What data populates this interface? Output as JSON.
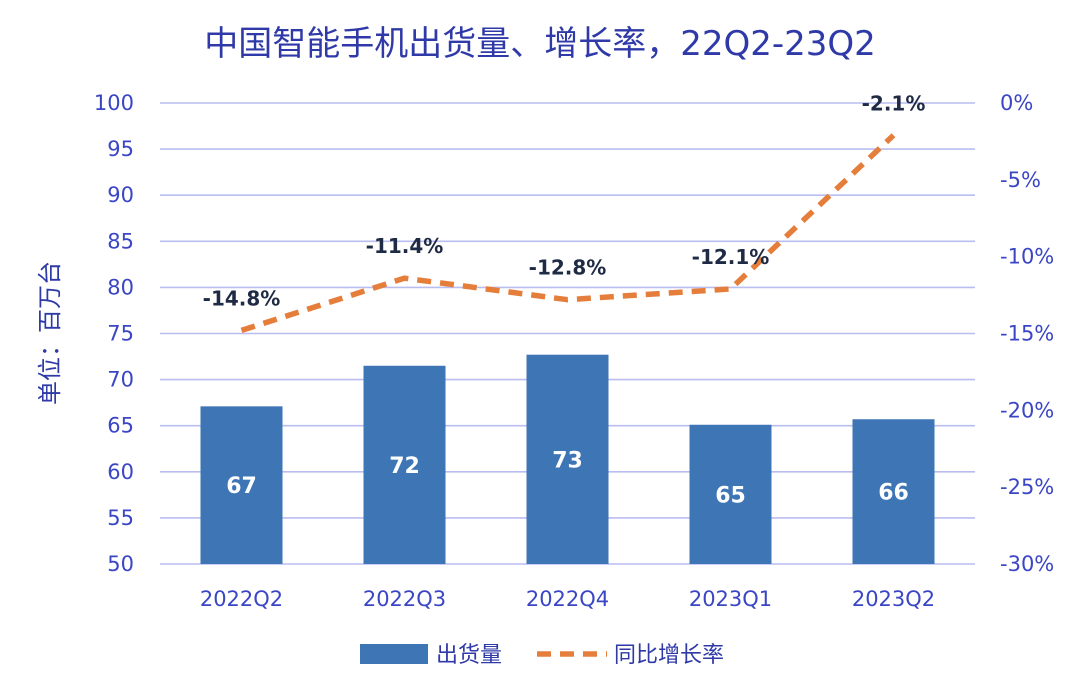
{
  "chart_data": {
    "type": "bar",
    "title": "中国智能手机出货量、增长率，22Q2-23Q2",
    "ylabel": "单位：百万台",
    "categories": [
      "2022Q2",
      "2022Q3",
      "2022Q4",
      "2023Q1",
      "2023Q2"
    ],
    "series": [
      {
        "name": "出货量",
        "type": "bar",
        "axis": "left",
        "color": "#3d75b5",
        "values": [
          67.1,
          71.5,
          72.7,
          65.1,
          65.7
        ],
        "labels": [
          "67",
          "72",
          "73",
          "65",
          "66"
        ]
      },
      {
        "name": "同比增长率",
        "type": "line",
        "style": "dashed",
        "axis": "right",
        "color": "#e57e3b",
        "values": [
          -14.8,
          -11.4,
          -12.8,
          -12.1,
          -2.1
        ],
        "labels": [
          "-14.8%",
          "-11.4%",
          "-12.8%",
          "-12.1%",
          "-2.1%"
        ]
      }
    ],
    "ylim": [
      50,
      100
    ],
    "yticks": [
      "100",
      "95",
      "90",
      "85",
      "80",
      "75",
      "70",
      "65",
      "60",
      "55",
      "50"
    ],
    "y2lim": [
      -30,
      0
    ],
    "y2ticks": [
      "0%",
      "-5%",
      "-10%",
      "-15%",
      "-20%",
      "-25%",
      "-30%"
    ],
    "grid": true,
    "legend": "bottom-center"
  }
}
